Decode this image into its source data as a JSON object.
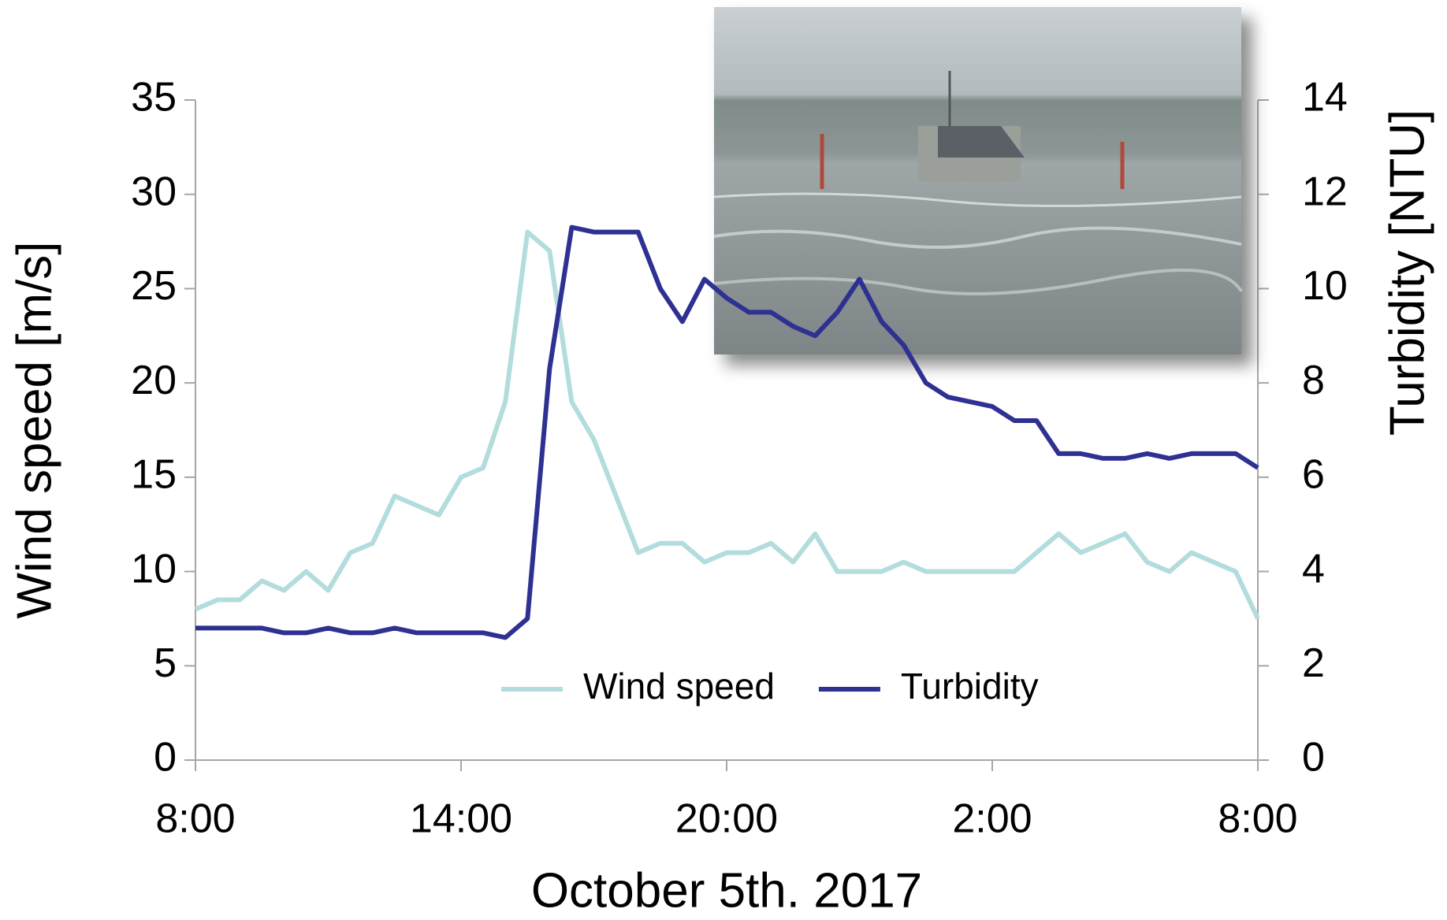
{
  "chart_data": {
    "type": "line",
    "xlabel": "October 5th. 2017",
    "ylabel": "Wind speed [m/s]",
    "y2label": "Turbidity [NTU]",
    "x": [
      0,
      0.5,
      1,
      1.5,
      2,
      2.5,
      3,
      3.5,
      4,
      4.5,
      5,
      5.5,
      6,
      6.5,
      7,
      7.5,
      8,
      8.5,
      9,
      9.5,
      10,
      10.5,
      11,
      11.5,
      12,
      12.5,
      13,
      13.5,
      14,
      14.5,
      15,
      15.5,
      16,
      16.5,
      17,
      17.5,
      18,
      18.5,
      19,
      19.5,
      20,
      20.5,
      21,
      21.5,
      22,
      22.5,
      23,
      23.5,
      24
    ],
    "xlim": [
      0,
      24
    ],
    "xticks": [
      {
        "value": 0,
        "label": "8:00"
      },
      {
        "value": 6,
        "label": "14:00"
      },
      {
        "value": 12,
        "label": "20:00"
      },
      {
        "value": 18,
        "label": "2:00"
      },
      {
        "value": 24,
        "label": "8:00"
      }
    ],
    "ylim": [
      0,
      35
    ],
    "yticks": [
      0,
      5,
      10,
      15,
      20,
      25,
      30,
      35
    ],
    "y2lim": [
      0,
      14
    ],
    "y2ticks": [
      0,
      2,
      4,
      6,
      8,
      10,
      12,
      14
    ],
    "legend": "bottom",
    "series": [
      {
        "name": "Wind speed",
        "color": "#b3dcdc",
        "values": [
          8,
          8.5,
          8.5,
          9.5,
          9,
          10,
          9,
          11,
          11.5,
          14,
          13.5,
          13,
          15,
          15.5,
          19,
          28,
          27,
          19,
          17,
          14,
          11,
          11.5,
          11.5,
          10.5,
          11,
          11,
          11.5,
          10.5,
          12,
          10,
          10,
          10,
          10.5,
          10,
          10,
          10,
          10,
          10,
          11,
          12,
          11,
          11.5,
          12,
          10.5,
          10,
          11,
          10.5,
          10,
          7.5
        ]
      },
      {
        "name": "Turbidity",
        "color": "#2e3192",
        "axis": "y2",
        "values": [
          2.8,
          2.8,
          2.8,
          2.8,
          2.7,
          2.7,
          2.8,
          2.7,
          2.7,
          2.8,
          2.7,
          2.7,
          2.7,
          2.7,
          2.6,
          3.0,
          8.3,
          11.3,
          11.2,
          11.2,
          11.2,
          10,
          9.3,
          10.2,
          9.8,
          9.5,
          9.5,
          9.2,
          9,
          9.5,
          10.2,
          9.3,
          8.8,
          8,
          7.7,
          7.6,
          7.5,
          7.2,
          7.2,
          6.5,
          6.5,
          6.4,
          6.4,
          6.5,
          6.4,
          6.5,
          6.5,
          6.5,
          6.2
        ]
      }
    ]
  }
}
